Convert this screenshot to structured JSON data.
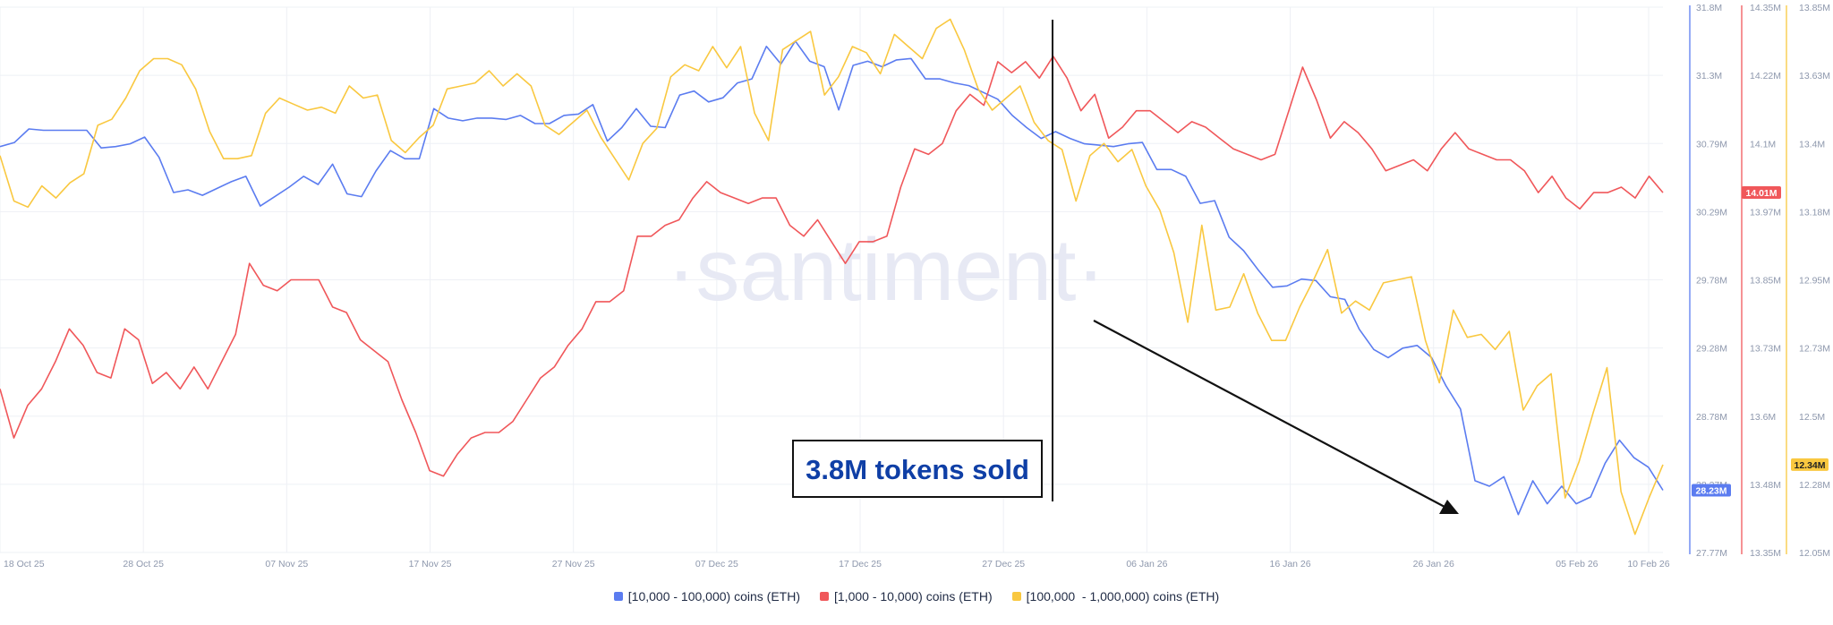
{
  "watermark": "·santiment·",
  "annotation": {
    "text": "3.8M tokens sold"
  },
  "colors": {
    "blue": "#5b7cf0",
    "red": "#f0575a",
    "yellow": "#f9c840",
    "grid": "#eef0f5",
    "tick": "#8e98ad"
  },
  "chart_data": {
    "type": "line",
    "x_tick_labels": [
      "18 Oct 25",
      "28 Oct 25",
      "07 Nov 25",
      "17 Nov 25",
      "27 Nov 25",
      "07 Dec 25",
      "17 Dec 25",
      "27 Dec 25",
      "06 Jan 26",
      "16 Jan 26",
      "26 Jan 26",
      "05 Feb 26",
      "10 Feb 26"
    ],
    "x_range": [
      "2025-10-18",
      "2026-02-11"
    ],
    "axes": {
      "blue": {
        "ticks": [
          "31.8M",
          "31.3M",
          "30.79M",
          "30.29M",
          "29.78M",
          "29.28M",
          "28.78M",
          "28.27M",
          "27.77M"
        ],
        "range": [
          27.77,
          31.8
        ],
        "current": "28.23M"
      },
      "red": {
        "ticks": [
          "14.35M",
          "14.22M",
          "14.1M",
          "13.97M",
          "13.85M",
          "13.73M",
          "13.6M",
          "13.48M",
          "13.35M"
        ],
        "range": [
          13.35,
          14.35
        ],
        "current": "14.01M"
      },
      "yellow": {
        "ticks": [
          "13.85M",
          "13.63M",
          "13.4M",
          "13.18M",
          "12.95M",
          "12.73M",
          "12.5M",
          "12.28M",
          "12.05M"
        ],
        "range": [
          12.05,
          13.85
        ],
        "current": "12.34M"
      }
    },
    "series": [
      {
        "name": "[10,000 - 100,000) coins (ETH)",
        "color": "#5b7cf0",
        "axis": "blue",
        "values": [
          30.77,
          30.8,
          30.9,
          30.89,
          30.89,
          30.89,
          30.89,
          30.76,
          30.77,
          30.79,
          30.84,
          30.69,
          30.43,
          30.45,
          30.41,
          30.46,
          30.51,
          30.55,
          30.33,
          30.4,
          30.47,
          30.55,
          30.49,
          30.64,
          30.42,
          30.4,
          30.59,
          30.74,
          30.68,
          30.68,
          31.05,
          30.98,
          30.96,
          30.98,
          30.98,
          30.97,
          31.0,
          30.94,
          30.94,
          31.0,
          31.01,
          31.08,
          30.81,
          30.91,
          31.05,
          30.92,
          30.91,
          31.15,
          31.18,
          31.1,
          31.13,
          31.24,
          31.27,
          31.51,
          31.38,
          31.55,
          31.4,
          31.36,
          31.04,
          31.37,
          31.4,
          31.36,
          31.41,
          31.42,
          31.27,
          31.27,
          31.24,
          31.22,
          31.17,
          31.12,
          31.0,
          30.91,
          30.83,
          30.88,
          30.83,
          30.79,
          30.78,
          30.77,
          30.79,
          30.8,
          30.6,
          30.6,
          30.55,
          30.35,
          30.37,
          30.1,
          30.0,
          29.86,
          29.73,
          29.74,
          29.79,
          29.78,
          29.66,
          29.64,
          29.42,
          29.27,
          29.21,
          29.28,
          29.3,
          29.21,
          29.0,
          28.83,
          28.3,
          28.26,
          28.33,
          28.05,
          28.3,
          28.13,
          28.26,
          28.13,
          28.18,
          28.43,
          28.6,
          28.47,
          28.4,
          28.23
        ]
      },
      {
        "name": "[1,000 - 10,000) coins (ETH)",
        "color": "#f0575a",
        "axis": "red",
        "values": [
          13.65,
          13.56,
          13.62,
          13.65,
          13.7,
          13.76,
          13.73,
          13.68,
          13.67,
          13.76,
          13.74,
          13.66,
          13.68,
          13.65,
          13.69,
          13.65,
          13.7,
          13.75,
          13.88,
          13.84,
          13.83,
          13.85,
          13.85,
          13.85,
          13.8,
          13.79,
          13.74,
          13.72,
          13.7,
          13.63,
          13.57,
          13.5,
          13.49,
          13.53,
          13.56,
          13.57,
          13.57,
          13.59,
          13.63,
          13.67,
          13.69,
          13.73,
          13.76,
          13.81,
          13.81,
          13.83,
          13.93,
          13.93,
          13.95,
          13.96,
          14.0,
          14.03,
          14.01,
          14.0,
          13.99,
          14.0,
          14.0,
          13.95,
          13.93,
          13.96,
          13.92,
          13.88,
          13.92,
          13.92,
          13.93,
          14.02,
          14.09,
          14.08,
          14.1,
          14.16,
          14.19,
          14.17,
          14.25,
          14.23,
          14.25,
          14.22,
          14.26,
          14.22,
          14.16,
          14.19,
          14.11,
          14.13,
          14.16,
          14.16,
          14.14,
          14.12,
          14.14,
          14.13,
          14.11,
          14.09,
          14.08,
          14.07,
          14.08,
          14.16,
          14.24,
          14.18,
          14.11,
          14.14,
          14.12,
          14.09,
          14.05,
          14.06,
          14.07,
          14.05,
          14.09,
          14.12,
          14.09,
          14.08,
          14.07,
          14.07,
          14.05,
          14.01,
          14.04,
          14.0,
          13.98,
          14.01,
          14.01,
          14.02,
          14.0,
          14.04,
          14.01
        ]
      },
      {
        "name": "[100,000  - 1,000,000) coins (ETH)",
        "color": "#f9c840",
        "axis": "yellow",
        "values": [
          13.36,
          13.21,
          13.19,
          13.26,
          13.22,
          13.27,
          13.3,
          13.46,
          13.48,
          13.55,
          13.64,
          13.68,
          13.68,
          13.66,
          13.58,
          13.44,
          13.35,
          13.35,
          13.36,
          13.5,
          13.55,
          13.53,
          13.51,
          13.52,
          13.5,
          13.59,
          13.55,
          13.56,
          13.41,
          13.37,
          13.42,
          13.46,
          13.58,
          13.59,
          13.6,
          13.64,
          13.59,
          13.63,
          13.59,
          13.46,
          13.43,
          13.47,
          13.51,
          13.42,
          13.35,
          13.28,
          13.4,
          13.45,
          13.62,
          13.66,
          13.64,
          13.72,
          13.65,
          13.72,
          13.5,
          13.41,
          13.71,
          13.74,
          13.77,
          13.56,
          13.62,
          13.72,
          13.7,
          13.63,
          13.76,
          13.72,
          13.68,
          13.78,
          13.81,
          13.71,
          13.58,
          13.51,
          13.55,
          13.59,
          13.47,
          13.41,
          13.38,
          13.21,
          13.36,
          13.4,
          13.34,
          13.38,
          13.26,
          13.18,
          13.04,
          12.81,
          13.13,
          12.85,
          12.86,
          12.97,
          12.84,
          12.75,
          12.75,
          12.86,
          12.95,
          13.05,
          12.84,
          12.88,
          12.85,
          12.94,
          12.95,
          12.96,
          12.75,
          12.61,
          12.85,
          12.76,
          12.77,
          12.72,
          12.78,
          12.52,
          12.6,
          12.64,
          12.23,
          12.35,
          12.51,
          12.66,
          12.25,
          12.11,
          12.23,
          12.34
        ]
      }
    ],
    "grid": true,
    "legend_position": "bottom-center"
  }
}
